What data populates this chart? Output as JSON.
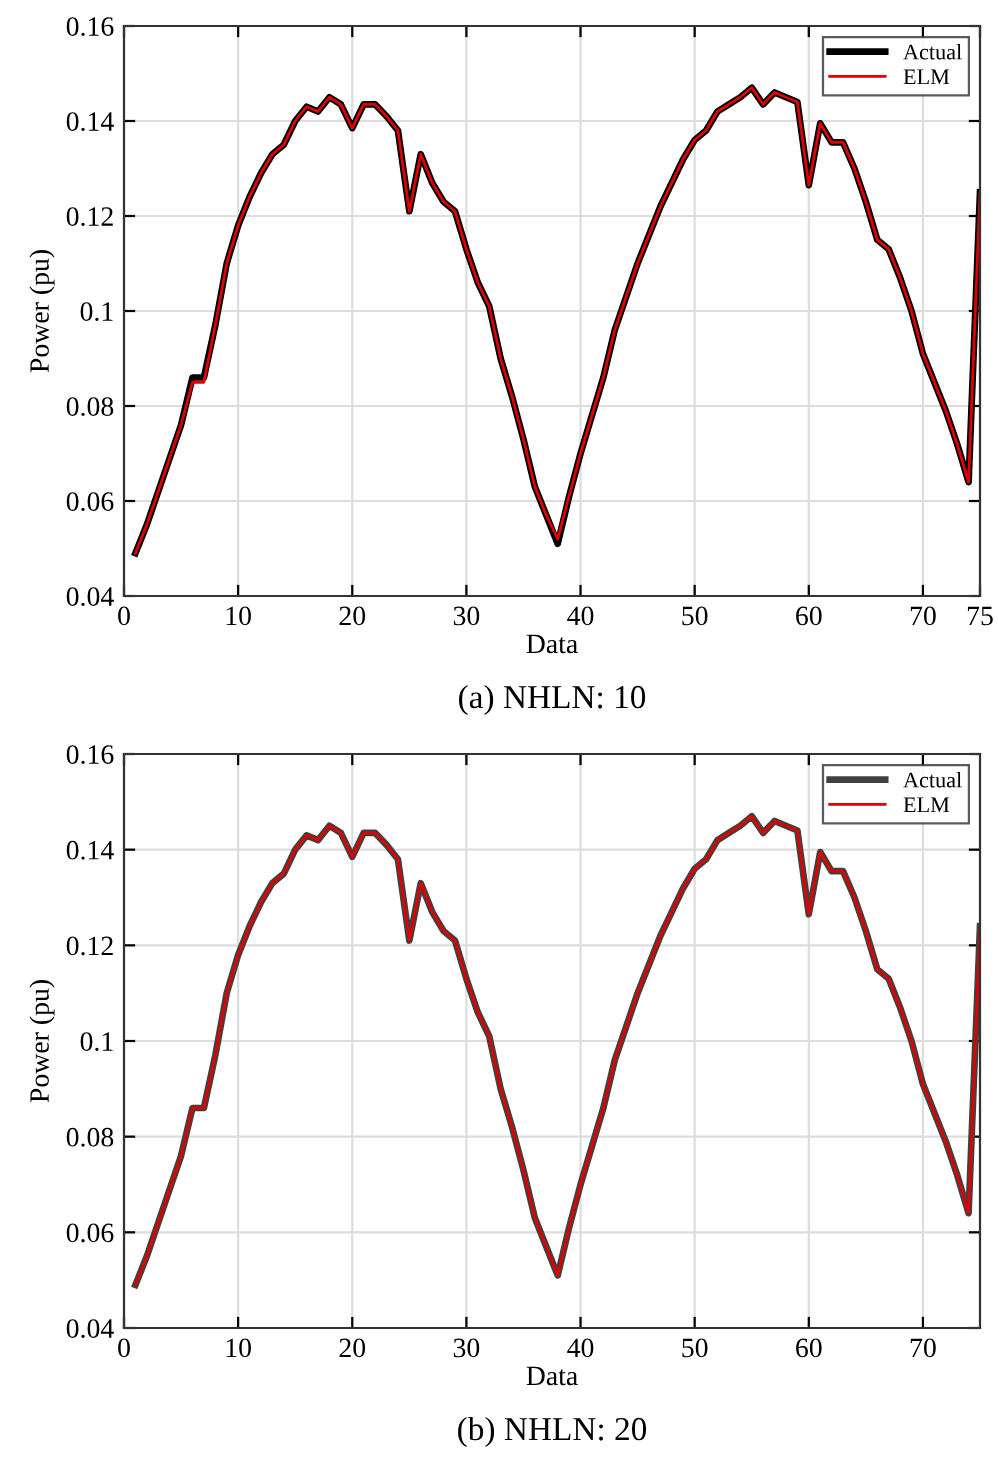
{
  "chart_data": [
    {
      "type": "line",
      "xlabel": "Data",
      "ylabel": "Power (pu)",
      "annotations": [
        "(a) NHLN: 10"
      ],
      "x": [
        1,
        2,
        3,
        4,
        5,
        6,
        7,
        8,
        9,
        10,
        11,
        12,
        13,
        14,
        15,
        16,
        17,
        18,
        19,
        20,
        21,
        22,
        23,
        24,
        25,
        26,
        27,
        28,
        29,
        30,
        31,
        32,
        33,
        34,
        35,
        36,
        37,
        38,
        39,
        40,
        41,
        42,
        43,
        44,
        45,
        46,
        47,
        48,
        49,
        50,
        51,
        52,
        53,
        54,
        55,
        56,
        57,
        58,
        59,
        60,
        61,
        62,
        63,
        64,
        65,
        66,
        67,
        68,
        69,
        70,
        71,
        72,
        73,
        74,
        75
      ],
      "series": [
        {
          "name": "Actual",
          "color": "#000000",
          "values": [
            0.049,
            0.055,
            0.062,
            0.069,
            0.076,
            0.086,
            0.086,
            0.097,
            0.11,
            0.118,
            0.124,
            0.129,
            0.133,
            0.135,
            0.14,
            0.143,
            0.142,
            0.145,
            0.1435,
            0.1385,
            0.1435,
            0.1435,
            0.141,
            0.138,
            0.121,
            0.133,
            0.127,
            0.123,
            0.121,
            0.113,
            0.106,
            0.101,
            0.09,
            0.082,
            0.073,
            0.063,
            0.057,
            0.051,
            0.061,
            0.07,
            0.078,
            0.086,
            0.096,
            0.103,
            0.11,
            0.116,
            0.122,
            0.127,
            0.132,
            0.136,
            0.138,
            0.142,
            0.1435,
            0.145,
            0.147,
            0.1435,
            0.146,
            0.145,
            0.144,
            0.1265,
            0.1395,
            0.1355,
            0.1355,
            0.13,
            0.123,
            0.115,
            0.113,
            0.107,
            0.1,
            0.091,
            0.085,
            0.079,
            0.072,
            0.064,
            0.125
          ]
        },
        {
          "name": "ELM",
          "color": "#e00000",
          "values": [
            0.049,
            0.055,
            0.062,
            0.069,
            0.076,
            0.085,
            0.085,
            0.097,
            0.11,
            0.118,
            0.124,
            0.129,
            0.133,
            0.135,
            0.14,
            0.143,
            0.142,
            0.145,
            0.1435,
            0.1385,
            0.1435,
            0.1435,
            0.141,
            0.138,
            0.121,
            0.133,
            0.127,
            0.123,
            0.121,
            0.113,
            0.106,
            0.101,
            0.09,
            0.082,
            0.073,
            0.063,
            0.057,
            0.052,
            0.061,
            0.07,
            0.078,
            0.086,
            0.096,
            0.103,
            0.11,
            0.116,
            0.122,
            0.127,
            0.132,
            0.136,
            0.138,
            0.142,
            0.1435,
            0.145,
            0.147,
            0.1435,
            0.146,
            0.145,
            0.144,
            0.1265,
            0.1395,
            0.1355,
            0.1355,
            0.13,
            0.123,
            0.115,
            0.113,
            0.107,
            0.1,
            0.091,
            0.085,
            0.079,
            0.072,
            0.064,
            0.125
          ]
        }
      ],
      "xlim": [
        0,
        75
      ],
      "xticks": [
        0,
        10,
        20,
        30,
        40,
        50,
        60,
        70,
        75
      ],
      "ylim": [
        0.04,
        0.16
      ],
      "yticks": [
        0.04,
        0.06,
        0.08,
        {
          "value": 0.1,
          "label": "0.1"
        },
        0.12,
        0.14,
        0.16
      ],
      "grid": true,
      "legend": "top right",
      "line_style": "solid",
      "marker": "none"
    },
    {
      "type": "line",
      "xlabel": "Data",
      "ylabel": "Power (pu)",
      "annotations": [
        "(b) NHLN: 20"
      ],
      "x": [
        1,
        2,
        3,
        4,
        5,
        6,
        7,
        8,
        9,
        10,
        11,
        12,
        13,
        14,
        15,
        16,
        17,
        18,
        19,
        20,
        21,
        22,
        23,
        24,
        25,
        26,
        27,
        28,
        29,
        30,
        31,
        32,
        33,
        34,
        35,
        36,
        37,
        38,
        39,
        40,
        41,
        42,
        43,
        44,
        45,
        46,
        47,
        48,
        49,
        50,
        51,
        52,
        53,
        54,
        55,
        56,
        57,
        58,
        59,
        60,
        61,
        62,
        63,
        64,
        65,
        66,
        67,
        68,
        69,
        70,
        71,
        72,
        73,
        74,
        75
      ],
      "series": [
        {
          "name": "Actual",
          "color": "#404040",
          "values": [
            0.049,
            0.055,
            0.062,
            0.069,
            0.076,
            0.086,
            0.086,
            0.097,
            0.11,
            0.118,
            0.124,
            0.129,
            0.133,
            0.135,
            0.14,
            0.143,
            0.142,
            0.145,
            0.1435,
            0.1385,
            0.1435,
            0.1435,
            0.141,
            0.138,
            0.121,
            0.133,
            0.127,
            0.123,
            0.121,
            0.113,
            0.106,
            0.101,
            0.09,
            0.082,
            0.073,
            0.063,
            0.057,
            0.051,
            0.061,
            0.07,
            0.078,
            0.086,
            0.096,
            0.103,
            0.11,
            0.116,
            0.122,
            0.127,
            0.132,
            0.136,
            0.138,
            0.142,
            0.1435,
            0.145,
            0.147,
            0.1435,
            0.146,
            0.145,
            0.144,
            0.1265,
            0.1395,
            0.1355,
            0.1355,
            0.13,
            0.123,
            0.115,
            0.113,
            0.107,
            0.1,
            0.091,
            0.085,
            0.079,
            0.072,
            0.064,
            0.124
          ]
        },
        {
          "name": "ELM",
          "color": "#e00000",
          "values": [
            0.049,
            0.055,
            0.062,
            0.069,
            0.076,
            0.086,
            0.086,
            0.097,
            0.11,
            0.118,
            0.124,
            0.129,
            0.133,
            0.135,
            0.14,
            0.143,
            0.142,
            0.145,
            0.1435,
            0.1385,
            0.1435,
            0.1435,
            0.141,
            0.138,
            0.121,
            0.133,
            0.127,
            0.123,
            0.121,
            0.113,
            0.106,
            0.101,
            0.09,
            0.082,
            0.073,
            0.063,
            0.057,
            0.051,
            0.061,
            0.07,
            0.078,
            0.086,
            0.096,
            0.103,
            0.11,
            0.116,
            0.122,
            0.127,
            0.132,
            0.136,
            0.138,
            0.142,
            0.1435,
            0.145,
            0.147,
            0.1435,
            0.146,
            0.145,
            0.144,
            0.1265,
            0.1395,
            0.1355,
            0.1355,
            0.13,
            0.123,
            0.115,
            0.113,
            0.107,
            0.1,
            0.091,
            0.085,
            0.079,
            0.072,
            0.064,
            0.124
          ]
        }
      ],
      "xlim": [
        0,
        75
      ],
      "xticks": [
        0,
        10,
        20,
        30,
        40,
        50,
        60,
        70
      ],
      "ylim": [
        0.04,
        0.16
      ],
      "yticks": [
        0.04,
        0.06,
        0.08,
        {
          "value": 0.1,
          "label": "0.1"
        },
        0.12,
        0.14,
        0.16
      ],
      "grid": true,
      "legend": "top right",
      "line_style": "solid",
      "marker": "none"
    }
  ]
}
